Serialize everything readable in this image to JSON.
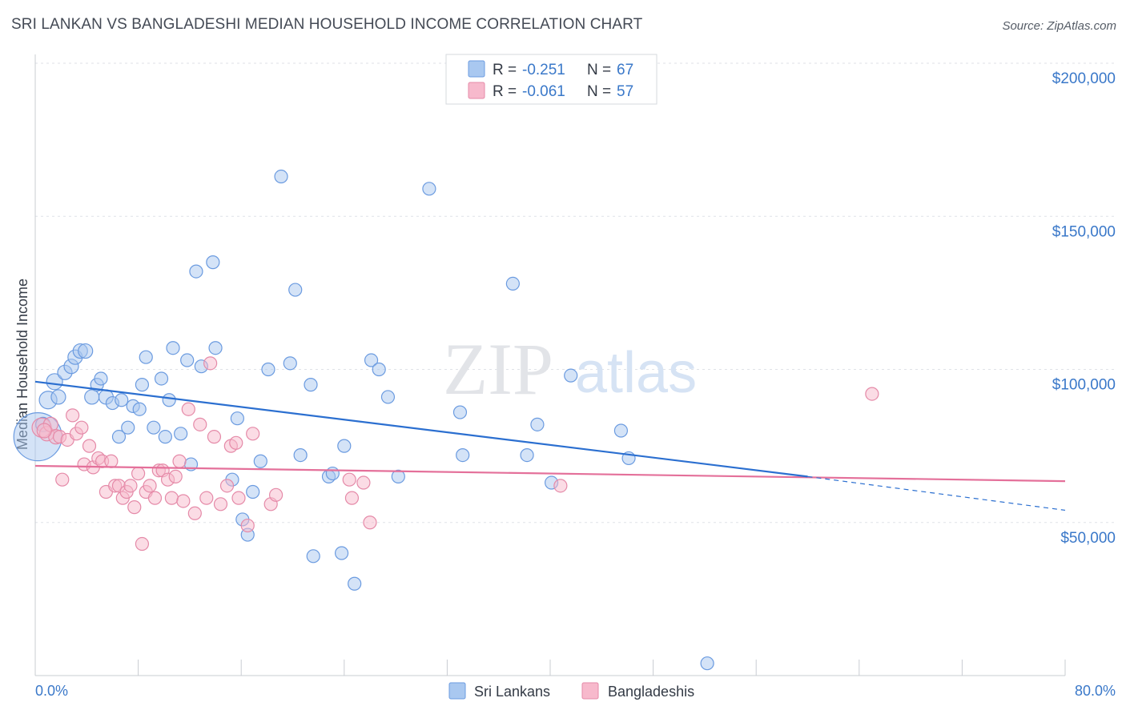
{
  "title": "SRI LANKAN VS BANGLADESHI MEDIAN HOUSEHOLD INCOME CORRELATION CHART",
  "source": "Source: ZipAtlas.com",
  "watermark": {
    "zip": "ZIP",
    "atlas": "atlas"
  },
  "legend_top": [
    {
      "r_label": "R = ",
      "r_value": "-0.251",
      "n_label": "N = ",
      "n_value": "67",
      "color": "#a9c8f0",
      "stroke": "#6b9be0"
    },
    {
      "r_label": "R = ",
      "r_value": "-0.061",
      "n_label": "N = ",
      "n_value": "57",
      "color": "#f7b9cc",
      "stroke": "#e58aa8"
    }
  ],
  "legend_bottom": [
    {
      "label": "Sri Lankans",
      "color": "#a9c8f0"
    },
    {
      "label": "Bangladeshis",
      "color": "#f7b9cc"
    }
  ],
  "chart_data": {
    "type": "scatter",
    "title": "SRI LANKAN VS BANGLADESHI MEDIAN HOUSEHOLD INCOME CORRELATION CHART",
    "xlabel": "",
    "ylabel": "Median Household Income",
    "xlim": [
      0,
      80
    ],
    "ylim": [
      0,
      210000
    ],
    "x_tick_labels": [
      "0.0%",
      "80.0%"
    ],
    "y_ticks": [
      50000,
      100000,
      150000,
      200000
    ],
    "y_tick_labels": [
      "$50,000",
      "$100,000",
      "$150,000",
      "$200,000"
    ],
    "grid": true,
    "legend_position": "top-center",
    "colors": {
      "blue": "#2b6fd0",
      "pink": "#e4709a",
      "axis_text": "#3a78c9"
    },
    "series": [
      {
        "name": "Sri Lankans",
        "color": "#a9c8f0",
        "stroke": "#6b9be0",
        "points": [
          [
            0.2,
            78000,
            30
          ],
          [
            1.0,
            90000,
            11
          ],
          [
            1.5,
            96000,
            10
          ],
          [
            1.8,
            91000,
            9
          ],
          [
            2.3,
            99000,
            9
          ],
          [
            2.8,
            101000,
            9
          ],
          [
            3.1,
            104000,
            9
          ],
          [
            3.5,
            106000,
            9
          ],
          [
            3.9,
            106000,
            9
          ],
          [
            4.4,
            91000,
            9
          ],
          [
            4.8,
            95000,
            8
          ],
          [
            5.1,
            97000,
            8
          ],
          [
            5.5,
            91000,
            9
          ],
          [
            6.0,
            89000,
            8
          ],
          [
            6.5,
            78000,
            8
          ],
          [
            6.7,
            90000,
            8
          ],
          [
            7.2,
            81000,
            8
          ],
          [
            7.6,
            88000,
            8
          ],
          [
            8.1,
            87000,
            8
          ],
          [
            8.3,
            95000,
            8
          ],
          [
            8.6,
            104000,
            8
          ],
          [
            9.2,
            81000,
            8
          ],
          [
            9.8,
            97000,
            8
          ],
          [
            10.1,
            78000,
            8
          ],
          [
            10.4,
            90000,
            8
          ],
          [
            10.7,
            107000,
            8
          ],
          [
            11.3,
            79000,
            8
          ],
          [
            11.8,
            103000,
            8
          ],
          [
            12.1,
            69000,
            8
          ],
          [
            12.5,
            132000,
            8
          ],
          [
            12.9,
            101000,
            8
          ],
          [
            13.8,
            135000,
            8
          ],
          [
            14.0,
            107000,
            8
          ],
          [
            15.3,
            64000,
            8
          ],
          [
            15.7,
            84000,
            8
          ],
          [
            16.1,
            51000,
            8
          ],
          [
            16.5,
            46000,
            8
          ],
          [
            16.9,
            60000,
            8
          ],
          [
            17.5,
            70000,
            8
          ],
          [
            18.1,
            100000,
            8
          ],
          [
            19.1,
            163000,
            8
          ],
          [
            19.8,
            102000,
            8
          ],
          [
            20.2,
            126000,
            8
          ],
          [
            20.6,
            72000,
            8
          ],
          [
            21.4,
            95000,
            8
          ],
          [
            21.6,
            39000,
            8
          ],
          [
            22.8,
            65000,
            8
          ],
          [
            23.1,
            66000,
            8
          ],
          [
            23.8,
            40000,
            8
          ],
          [
            24.0,
            75000,
            8
          ],
          [
            24.8,
            30000,
            8
          ],
          [
            26.1,
            103000,
            8
          ],
          [
            26.7,
            100000,
            8
          ],
          [
            27.4,
            91000,
            8
          ],
          [
            28.2,
            65000,
            8
          ],
          [
            30.6,
            159000,
            8
          ],
          [
            33.0,
            86000,
            8
          ],
          [
            33.2,
            72000,
            8
          ],
          [
            37.1,
            128000,
            8
          ],
          [
            38.2,
            72000,
            8
          ],
          [
            39.0,
            82000,
            8
          ],
          [
            40.1,
            63000,
            8
          ],
          [
            41.6,
            98000,
            8
          ],
          [
            45.5,
            80000,
            8
          ],
          [
            46.1,
            71000,
            8
          ],
          [
            52.2,
            4000,
            8
          ],
          [
            0.6,
            82000,
            9
          ]
        ],
        "trend": {
          "x0": 0,
          "y0": 96000,
          "x1": 60,
          "y1": 65000,
          "dash_x1": 80,
          "dash_y1": 54000
        }
      },
      {
        "name": "Bangladeshis",
        "color": "#f7b9cc",
        "stroke": "#e58aa8",
        "points": [
          [
            0.5,
            81000,
            12
          ],
          [
            0.9,
            79000,
            9
          ],
          [
            1.2,
            82000,
            9
          ],
          [
            1.6,
            78000,
            9
          ],
          [
            1.9,
            78000,
            8
          ],
          [
            2.1,
            64000,
            8
          ],
          [
            2.5,
            77000,
            8
          ],
          [
            2.9,
            85000,
            8
          ],
          [
            3.2,
            79000,
            8
          ],
          [
            3.6,
            81000,
            8
          ],
          [
            3.8,
            69000,
            8
          ],
          [
            4.2,
            75000,
            8
          ],
          [
            4.5,
            68000,
            8
          ],
          [
            4.9,
            71000,
            8
          ],
          [
            5.2,
            70000,
            8
          ],
          [
            5.5,
            60000,
            8
          ],
          [
            5.9,
            70000,
            8
          ],
          [
            6.2,
            62000,
            8
          ],
          [
            6.5,
            62000,
            8
          ],
          [
            6.8,
            58000,
            8
          ],
          [
            7.1,
            60000,
            8
          ],
          [
            7.4,
            62000,
            8
          ],
          [
            7.7,
            55000,
            8
          ],
          [
            8.0,
            66000,
            8
          ],
          [
            8.3,
            43000,
            8
          ],
          [
            8.6,
            60000,
            8
          ],
          [
            8.9,
            62000,
            8
          ],
          [
            9.3,
            58000,
            8
          ],
          [
            9.6,
            67000,
            8
          ],
          [
            9.9,
            67000,
            8
          ],
          [
            10.3,
            64000,
            8
          ],
          [
            10.6,
            58000,
            8
          ],
          [
            10.9,
            65000,
            8
          ],
          [
            11.2,
            70000,
            8
          ],
          [
            11.5,
            57000,
            8
          ],
          [
            11.9,
            87000,
            8
          ],
          [
            12.4,
            53000,
            8
          ],
          [
            12.8,
            82000,
            8
          ],
          [
            13.3,
            58000,
            8
          ],
          [
            13.6,
            102000,
            8
          ],
          [
            13.9,
            78000,
            8
          ],
          [
            14.4,
            56000,
            8
          ],
          [
            14.9,
            62000,
            8
          ],
          [
            15.2,
            75000,
            8
          ],
          [
            15.6,
            76000,
            8
          ],
          [
            15.8,
            58000,
            8
          ],
          [
            16.5,
            49000,
            8
          ],
          [
            16.9,
            79000,
            8
          ],
          [
            18.3,
            56000,
            8
          ],
          [
            18.7,
            59000,
            8
          ],
          [
            24.4,
            64000,
            8
          ],
          [
            24.6,
            58000,
            8
          ],
          [
            25.5,
            63000,
            8
          ],
          [
            26.0,
            50000,
            8
          ],
          [
            40.8,
            62000,
            8
          ],
          [
            65.0,
            92000,
            8
          ],
          [
            0.7,
            80000,
            9
          ]
        ],
        "trend": {
          "x0": 0,
          "y0": 68500,
          "x1": 80,
          "y1": 63500
        }
      }
    ]
  }
}
